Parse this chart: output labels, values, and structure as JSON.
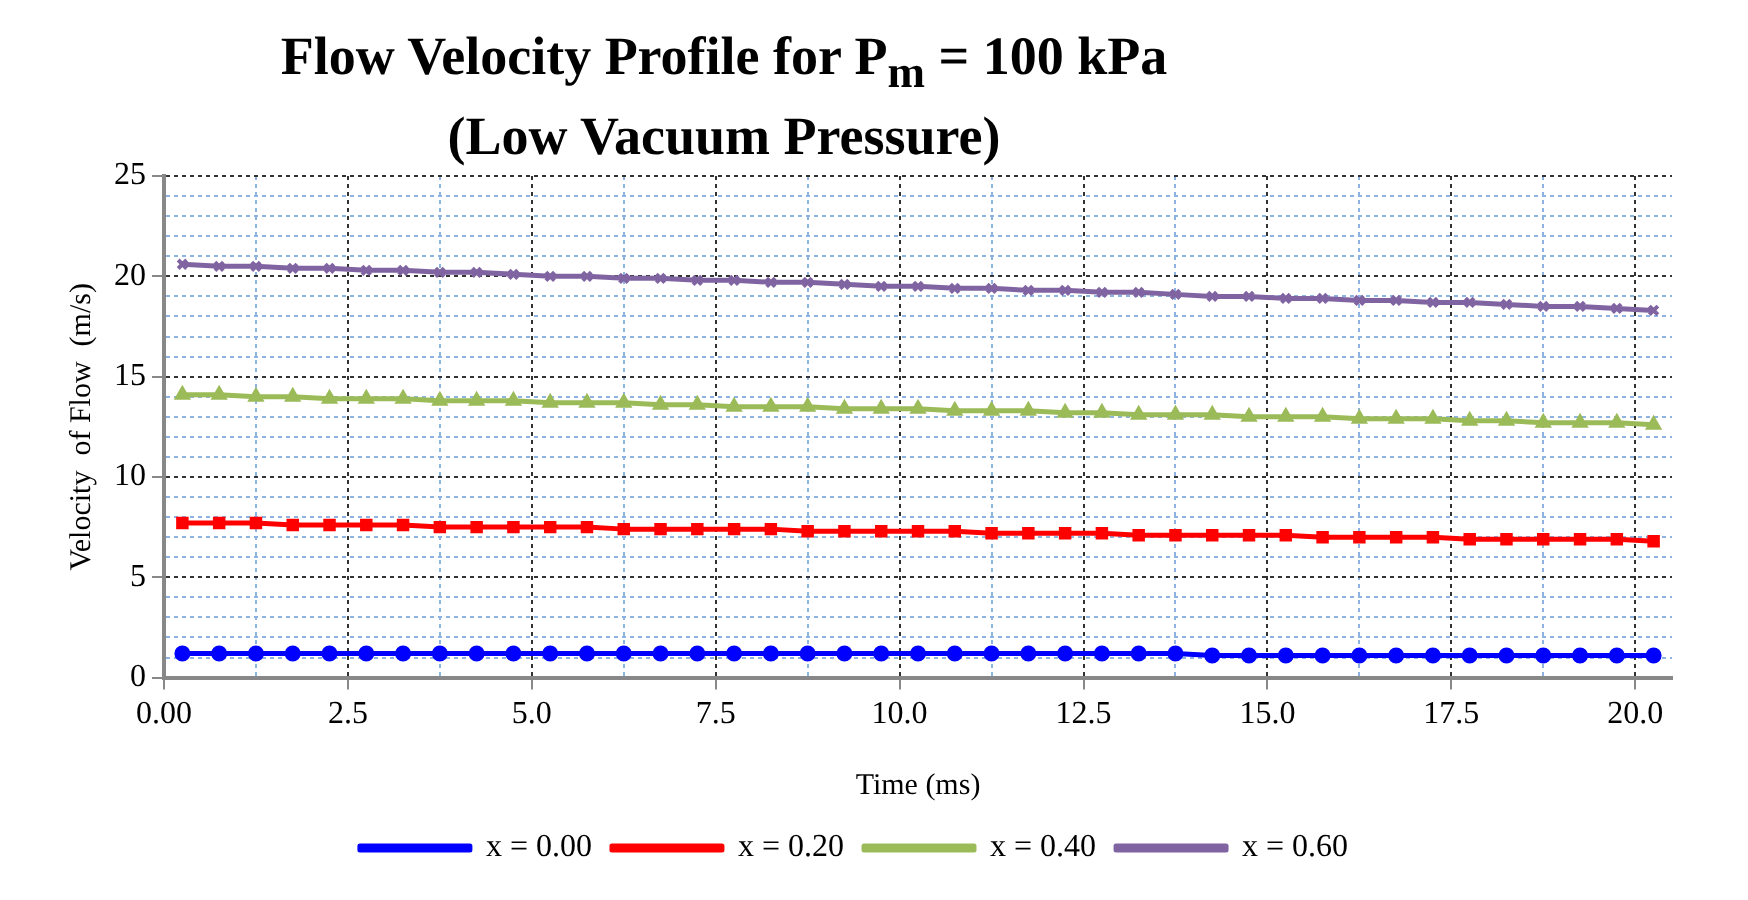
{
  "chart_data": {
    "type": "line",
    "title": "Flow Velocity Profile for P$_{m}$  =  100 kPa\n(Low Vacuum Pressure)",
    "xlabel": "Time (ms)",
    "ylabel": "Velocity  of Flow  (m/s)",
    "x": [
      0.25,
      0.75,
      1.25,
      1.75,
      2.25,
      2.75,
      3.25,
      3.75,
      4.25,
      4.75,
      5.25,
      5.75,
      6.25,
      6.75,
      7.25,
      7.75,
      8.25,
      8.75,
      9.25,
      9.75,
      10.25,
      10.75,
      11.25,
      11.75,
      12.25,
      12.75,
      13.25,
      13.75,
      14.25,
      14.75,
      15.25,
      15.75,
      16.25,
      16.75,
      17.25,
      17.75,
      18.25,
      18.75,
      19.25,
      19.75,
      20.25
    ],
    "series": [
      {
        "name": "x = 0.00",
        "color": "#0000ff",
        "marker": "circle",
        "values": [
          1.2,
          1.2,
          1.2,
          1.2,
          1.2,
          1.2,
          1.2,
          1.2,
          1.2,
          1.2,
          1.2,
          1.2,
          1.2,
          1.2,
          1.2,
          1.2,
          1.2,
          1.2,
          1.2,
          1.2,
          1.2,
          1.2,
          1.2,
          1.2,
          1.2,
          1.2,
          1.2,
          1.2,
          1.1,
          1.1,
          1.1,
          1.1,
          1.1,
          1.1,
          1.1,
          1.1,
          1.1,
          1.1,
          1.1,
          1.1,
          1.1
        ]
      },
      {
        "name": "x = 0.20",
        "color": "#ff0000",
        "marker": "square",
        "values": [
          7.7,
          7.7,
          7.7,
          7.6,
          7.6,
          7.6,
          7.6,
          7.5,
          7.5,
          7.5,
          7.5,
          7.5,
          7.4,
          7.4,
          7.4,
          7.4,
          7.4,
          7.3,
          7.3,
          7.3,
          7.3,
          7.3,
          7.2,
          7.2,
          7.2,
          7.2,
          7.1,
          7.1,
          7.1,
          7.1,
          7.1,
          7.0,
          7.0,
          7.0,
          7.0,
          6.9,
          6.9,
          6.9,
          6.9,
          6.9,
          6.8
        ]
      },
      {
        "name": "x = 0.40",
        "color": "#9bbb59",
        "marker": "triangle",
        "values": [
          14.1,
          14.1,
          14.0,
          14.0,
          13.9,
          13.9,
          13.9,
          13.8,
          13.8,
          13.8,
          13.7,
          13.7,
          13.7,
          13.6,
          13.6,
          13.5,
          13.5,
          13.5,
          13.4,
          13.4,
          13.4,
          13.3,
          13.3,
          13.3,
          13.2,
          13.2,
          13.1,
          13.1,
          13.1,
          13.0,
          13.0,
          13.0,
          12.9,
          12.9,
          12.9,
          12.8,
          12.8,
          12.7,
          12.7,
          12.7,
          12.6
        ]
      },
      {
        "name": "x = 0.60",
        "color": "#8064a2",
        "marker": "cross",
        "values": [
          20.6,
          20.5,
          20.5,
          20.4,
          20.4,
          20.3,
          20.3,
          20.2,
          20.2,
          20.1,
          20.0,
          20.0,
          19.9,
          19.9,
          19.8,
          19.8,
          19.7,
          19.7,
          19.6,
          19.5,
          19.5,
          19.4,
          19.4,
          19.3,
          19.3,
          19.2,
          19.2,
          19.1,
          19.0,
          19.0,
          18.9,
          18.9,
          18.8,
          18.8,
          18.7,
          18.7,
          18.6,
          18.5,
          18.5,
          18.4,
          18.3
        ]
      }
    ],
    "xlim": [
      0,
      20.5
    ],
    "xticks": [
      {
        "value": 0,
        "label": "0.00"
      },
      {
        "value": 1.25,
        "label": null
      },
      {
        "value": 2.5,
        "label": "2.5"
      },
      {
        "value": 3.75,
        "label": null
      },
      {
        "value": 5,
        "label": "5.0"
      },
      {
        "value": 6.25,
        "label": null
      },
      {
        "value": 7.5,
        "label": "7.5"
      },
      {
        "value": 8.75,
        "label": null
      },
      {
        "value": 10,
        "label": "10.0"
      },
      {
        "value": 11.25,
        "label": null
      },
      {
        "value": 12.5,
        "label": "12.5"
      },
      {
        "value": 13.75,
        "label": null
      },
      {
        "value": 15,
        "label": "15.0"
      },
      {
        "value": 16.25,
        "label": null
      },
      {
        "value": 17.5,
        "label": "17.5"
      },
      {
        "value": 18.75,
        "label": null
      },
      {
        "value": 20,
        "label": "20.0"
      }
    ],
    "ylim": [
      0,
      25
    ],
    "yticks": [
      0,
      {
        "value": 1,
        "label": null
      },
      {
        "value": 2,
        "label": null
      },
      {
        "value": 3,
        "label": null
      },
      {
        "value": 4,
        "label": null
      },
      5,
      {
        "value": 6,
        "label": null
      },
      {
        "value": 7,
        "label": null
      },
      {
        "value": 8,
        "label": null
      },
      {
        "value": 9,
        "label": null
      },
      10,
      {
        "value": 11,
        "label": null
      },
      {
        "value": 12,
        "label": null
      },
      {
        "value": 13,
        "label": null
      },
      {
        "value": 14,
        "label": null
      },
      15,
      {
        "value": 16,
        "label": null
      },
      {
        "value": 17,
        "label": null
      },
      {
        "value": 18,
        "label": null
      },
      {
        "value": 19,
        "label": null
      },
      20,
      {
        "value": 21,
        "label": null
      },
      {
        "value": 22,
        "label": null
      },
      {
        "value": 23,
        "label": null
      },
      {
        "value": 24,
        "label": null
      },
      25
    ],
    "grid": true,
    "legend": "bottom",
    "line_style": "solid"
  }
}
